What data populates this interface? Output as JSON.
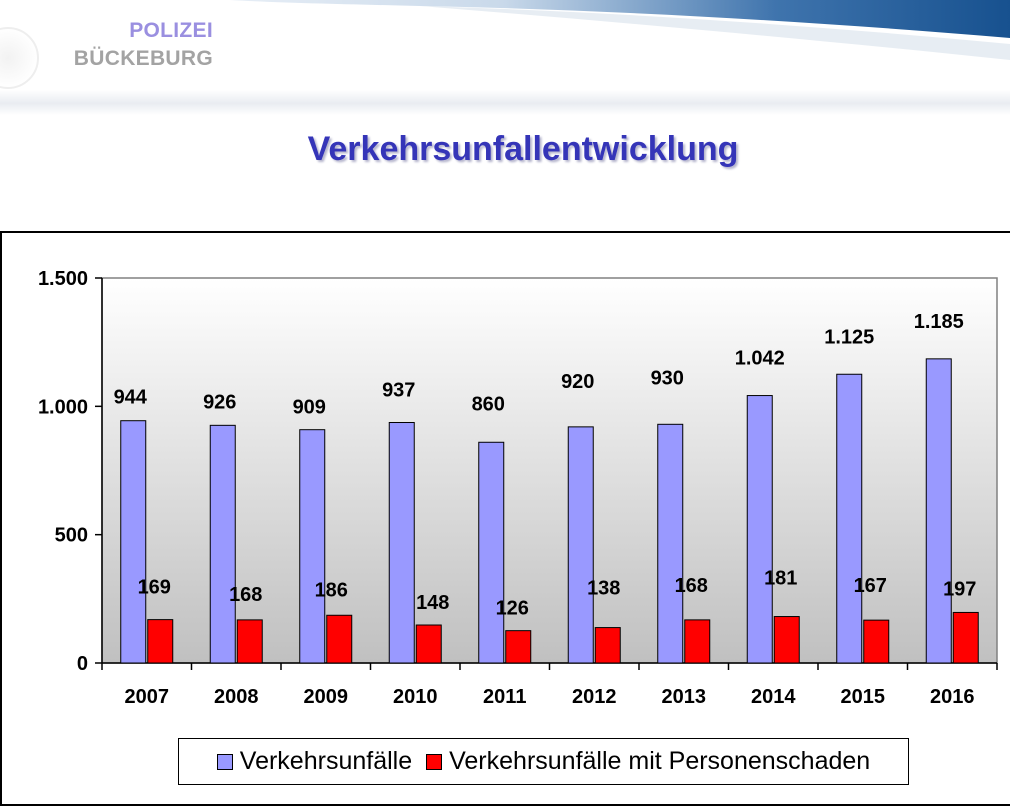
{
  "header": {
    "logo_line1": "POLIZEI",
    "logo_line2": "BÜCKEBURG"
  },
  "title": "Verkehrsunfallentwicklung",
  "colors": {
    "series1": "#9999ff",
    "series2": "#ff0000",
    "title": "#3535b8",
    "header_band": "#1f5a96"
  },
  "chart_data": {
    "type": "bar",
    "categories": [
      "2007",
      "2008",
      "2009",
      "2010",
      "2011",
      "2012",
      "2013",
      "2014",
      "2015",
      "2016"
    ],
    "series": [
      {
        "name": "Verkehrsunfälle",
        "values": [
          944,
          926,
          909,
          937,
          860,
          920,
          930,
          1042,
          1125,
          1185
        ],
        "labels": [
          "944",
          "926",
          "909",
          "937",
          "860",
          "920",
          "930",
          "1.042",
          "1.125",
          "1.185"
        ],
        "color": "#9999ff"
      },
      {
        "name": "Verkehrsunfälle mit Personenschaden",
        "values": [
          169,
          168,
          186,
          148,
          126,
          138,
          168,
          181,
          167,
          197
        ],
        "labels": [
          "169",
          "168",
          "186",
          "148",
          "126",
          "138",
          "168",
          "181",
          "167",
          "197"
        ],
        "color": "#ff0000"
      }
    ],
    "y_ticks": [
      0,
      500,
      1000,
      1500
    ],
    "y_tick_labels": [
      "0",
      "500",
      "1.000",
      "1.500"
    ],
    "ylim": [
      0,
      1500
    ],
    "grid": false,
    "legend_position": "bottom"
  }
}
